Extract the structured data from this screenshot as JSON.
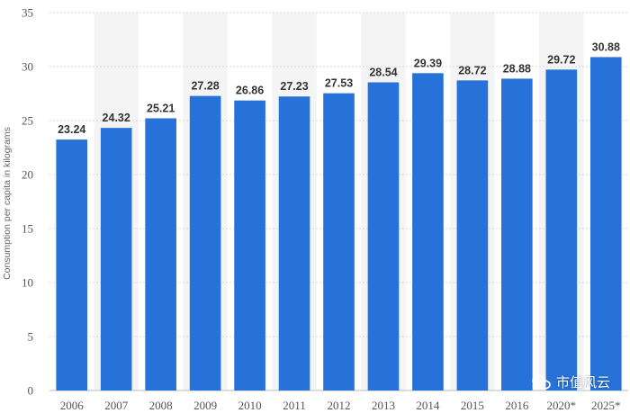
{
  "chart_data": {
    "type": "bar",
    "categories": [
      "2006",
      "2007",
      "2008",
      "2009",
      "2010",
      "2011",
      "2012",
      "2013",
      "2014",
      "2015",
      "2016",
      "2020*",
      "2025*"
    ],
    "values": [
      23.24,
      24.32,
      25.21,
      27.28,
      26.86,
      27.23,
      27.53,
      28.54,
      29.39,
      28.72,
      28.88,
      29.72,
      30.88
    ],
    "value_labels": [
      "23.24",
      "24.32",
      "25.21",
      "27.28",
      "26.86",
      "27.23",
      "27.53",
      "28.54",
      "29.39",
      "28.72",
      "28.88",
      "29.72",
      "30.88"
    ],
    "title": "",
    "xlabel": "",
    "ylabel": "Consumption per capita in kilograms",
    "ylim": [
      0,
      35
    ],
    "yticks": [
      0,
      5,
      10,
      15,
      20,
      25,
      30,
      35
    ],
    "grid": true,
    "bar_color": "#2672d9",
    "band_color": "#f4f4f4"
  },
  "watermark": {
    "text": "市值风云",
    "icon": "wechat-icon"
  }
}
